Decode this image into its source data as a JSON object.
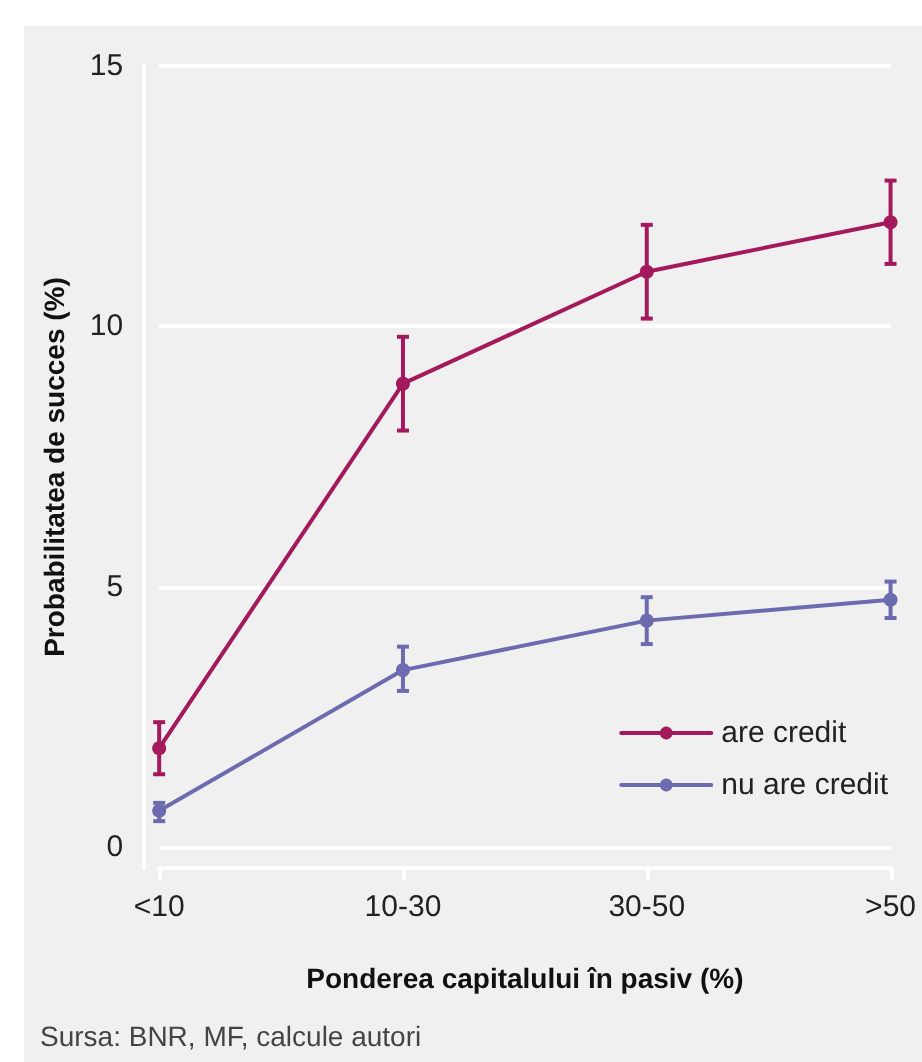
{
  "chart_data": {
    "type": "line",
    "xlabel": "Ponderea capitalului în pasiv (%)",
    "ylabel": "Probabilitatea de succes (%)",
    "annotations": [
      "Sursa: BNR, MF, calcule autori"
    ],
    "categories": [
      "<10",
      "10-30",
      "30-50",
      ">50"
    ],
    "series": [
      {
        "name": "are credit",
        "color": "#a3195b",
        "values": [
          1.9,
          8.9,
          11.05,
          12.0
        ],
        "errors": [
          [
            1.4,
            2.4
          ],
          [
            8.0,
            9.8
          ],
          [
            10.15,
            11.95
          ],
          [
            11.2,
            12.8
          ]
        ]
      },
      {
        "name": "nu are credit",
        "color": "#6c6bb0",
        "values": [
          0.7,
          3.4,
          4.35,
          4.75
        ],
        "errors": [
          [
            0.5,
            0.85
          ],
          [
            3.0,
            3.85
          ],
          [
            3.9,
            4.8
          ],
          [
            4.4,
            5.1
          ]
        ]
      }
    ],
    "ylim": [
      -0.4,
      15
    ],
    "yticks": [
      0,
      5,
      10,
      15
    ],
    "grid": "y",
    "legend": "bottom right",
    "marker": "circle",
    "line_style": "solid"
  }
}
